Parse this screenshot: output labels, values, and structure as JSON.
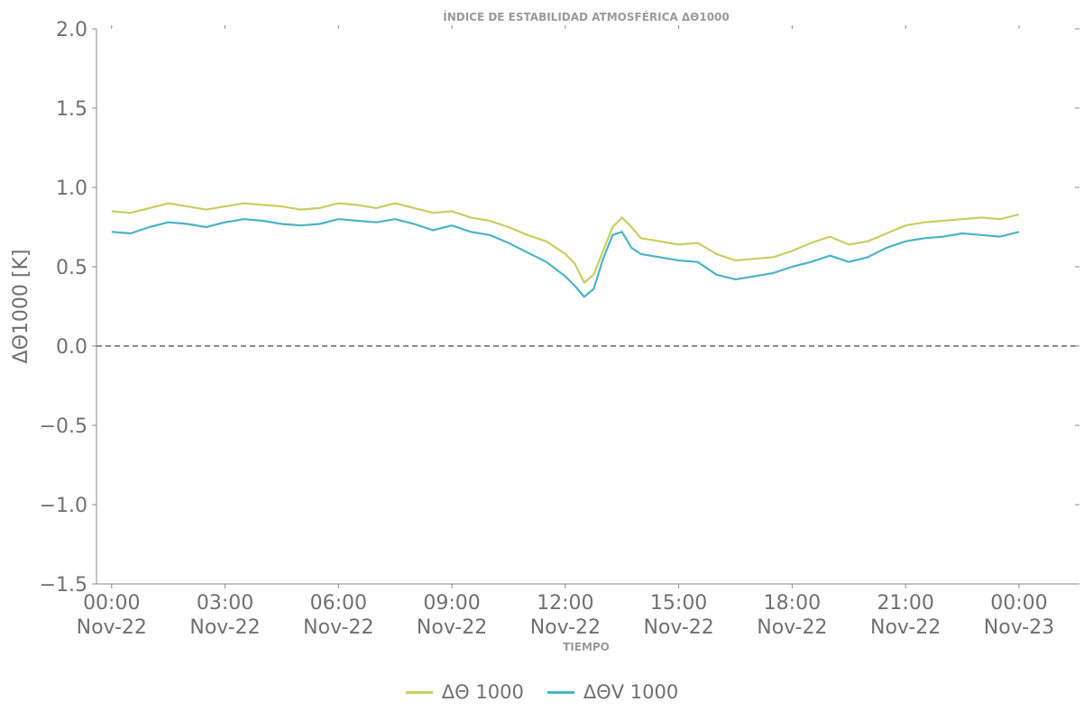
{
  "chart_data": {
    "type": "line",
    "title": "ÍNDICE DE ESTABILIDAD ATMOSFÉRICA ΔΘ1000",
    "xlabel": "TIEMPO",
    "ylabel": "ΔΘ1000 [K]",
    "ylim": [
      -1.5,
      2.0
    ],
    "xlim_hours": [
      -0.4,
      25.6
    ],
    "y_ticks": [
      "2.0",
      "1.5",
      "1.0",
      "0.5",
      "0.0",
      "−0.5",
      "−1.0",
      "−1.5"
    ],
    "x_ticks": [
      {
        "hour": 0,
        "time": "00:00",
        "date": "Nov-22"
      },
      {
        "hour": 3,
        "time": "03:00",
        "date": "Nov-22"
      },
      {
        "hour": 6,
        "time": "06:00",
        "date": "Nov-22"
      },
      {
        "hour": 9,
        "time": "09:00",
        "date": "Nov-22"
      },
      {
        "hour": 12,
        "time": "12:00",
        "date": "Nov-22"
      },
      {
        "hour": 15,
        "time": "15:00",
        "date": "Nov-22"
      },
      {
        "hour": 18,
        "time": "18:00",
        "date": "Nov-22"
      },
      {
        "hour": 21,
        "time": "21:00",
        "date": "Nov-22"
      },
      {
        "hour": 24,
        "time": "00:00",
        "date": "Nov-23"
      }
    ],
    "reference_line": {
      "y": 0.0,
      "style": "dashed",
      "color": "#666666"
    },
    "legend_position": "bottom-center",
    "x_hours": [
      0,
      0.5,
      1,
      1.5,
      2,
      2.5,
      3,
      3.5,
      4,
      4.5,
      5,
      5.5,
      6,
      6.5,
      7,
      7.5,
      8,
      8.5,
      9,
      9.5,
      10,
      10.5,
      11,
      11.5,
      12,
      12.25,
      12.5,
      12.75,
      13,
      13.25,
      13.5,
      13.75,
      14,
      14.5,
      15,
      15.5,
      16,
      16.5,
      17,
      17.5,
      18,
      18.5,
      19,
      19.5,
      20,
      20.5,
      21,
      21.5,
      22,
      22.5,
      23,
      23.5,
      24
    ],
    "series": [
      {
        "name": "ΔΘ 1000",
        "color": "#c8cf60",
        "values": [
          0.85,
          0.84,
          0.87,
          0.9,
          0.88,
          0.86,
          0.88,
          0.9,
          0.89,
          0.88,
          0.86,
          0.87,
          0.9,
          0.89,
          0.87,
          0.9,
          0.87,
          0.84,
          0.85,
          0.81,
          0.79,
          0.75,
          0.7,
          0.66,
          0.58,
          0.52,
          0.4,
          0.45,
          0.6,
          0.75,
          0.81,
          0.75,
          0.68,
          0.66,
          0.64,
          0.65,
          0.58,
          0.54,
          0.55,
          0.56,
          0.6,
          0.65,
          0.69,
          0.64,
          0.66,
          0.71,
          0.76,
          0.78,
          0.79,
          0.8,
          0.81,
          0.8,
          0.83
        ]
      },
      {
        "name": "ΔΘV 1000",
        "color": "#4bb4c4",
        "values": [
          0.72,
          0.71,
          0.75,
          0.78,
          0.77,
          0.75,
          0.78,
          0.8,
          0.79,
          0.77,
          0.76,
          0.77,
          0.8,
          0.79,
          0.78,
          0.8,
          0.77,
          0.73,
          0.76,
          0.72,
          0.7,
          0.65,
          0.59,
          0.53,
          0.44,
          0.38,
          0.31,
          0.36,
          0.55,
          0.7,
          0.72,
          0.62,
          0.58,
          0.56,
          0.54,
          0.53,
          0.45,
          0.42,
          0.44,
          0.46,
          0.5,
          0.53,
          0.57,
          0.53,
          0.56,
          0.62,
          0.66,
          0.68,
          0.69,
          0.71,
          0.7,
          0.69,
          0.72
        ]
      }
    ]
  }
}
